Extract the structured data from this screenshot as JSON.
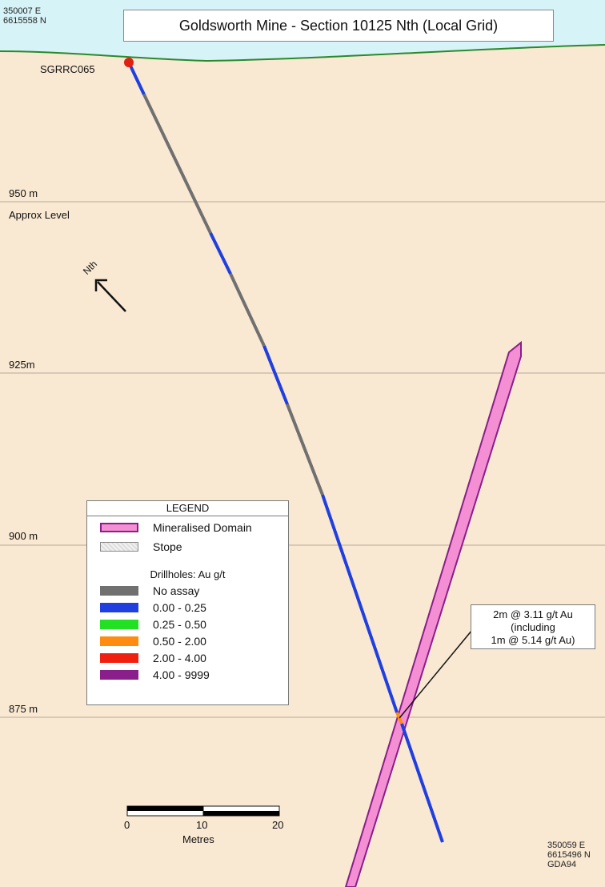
{
  "title": "Goldsworth Mine - Section 10125 Nth (Local Grid)",
  "top_left_coords": {
    "easting": "350007 E",
    "northing": "6615558 N"
  },
  "bottom_right_coords": {
    "easting": "350059 E",
    "northing": "6615496 N",
    "datum": "GDA94"
  },
  "drillhole": {
    "id": "SGRRC065"
  },
  "elevation_labels": [
    "950 m",
    "925m",
    "900 m",
    "875 m"
  ],
  "approx_level_label": "Approx Level",
  "north_arrow_label": "Nth",
  "legend": {
    "title": "LEGEND",
    "mineralised_domain": "Mineralised Domain",
    "stope": "Stope",
    "drillholes_heading": "Drillholes: Au g/t",
    "classes": [
      {
        "label": "No assay",
        "color": "#707070"
      },
      {
        "label": "0.00 - 0.25",
        "color": "#1f3fe0"
      },
      {
        "label": "0.25 - 0.50",
        "color": "#22e022"
      },
      {
        "label": "0.50 - 2.00",
        "color": "#ff8c10"
      },
      {
        "label": "2.00 - 4.00",
        "color": "#f02010"
      },
      {
        "label": "4.00 - 9999",
        "color": "#8a1e8a"
      }
    ],
    "domain_fill": "#f48fd4",
    "domain_stroke": "#8a1e8a"
  },
  "intercept_callout": {
    "line1": "2m @ 3.11 g/t Au",
    "line2": "(including",
    "line3": "1m @ 5.14 g/t Au)"
  },
  "scale_bar": {
    "ticks": [
      "0",
      "10",
      "20"
    ],
    "unit": "Metres"
  },
  "colors": {
    "sky": "#d6f3f8",
    "ground": "#f9e8d2",
    "surface_line": "#2a8a2a",
    "collar": "#e02010"
  }
}
